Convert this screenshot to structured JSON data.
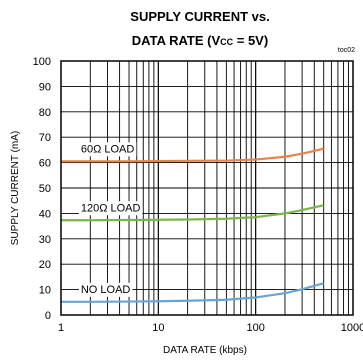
{
  "chart_data": {
    "type": "line",
    "title_line1": "SUPPLY CURRENT vs.",
    "title_line2_pre": "DATA RATE (V",
    "title_line2_sub": "CC",
    "title_line2_post": " = 5V)",
    "tag": "toc02",
    "xlabel": "DATA RATE (kbps)",
    "ylabel": "SUPPLY CURRENT (mA)",
    "xscale": "log",
    "xlim": [
      1,
      1000
    ],
    "ylim": [
      0,
      100
    ],
    "x_ticks": [
      "1",
      "10",
      "100",
      "1000"
    ],
    "y_ticks": [
      "0",
      "10",
      "20",
      "30",
      "40",
      "50",
      "60",
      "70",
      "80",
      "90",
      "100"
    ],
    "grid": true,
    "series": [
      {
        "name": "60Ω LOAD",
        "color": "#e8824a",
        "x": [
          1,
          2,
          5,
          10,
          20,
          50,
          100,
          200,
          300,
          400,
          500
        ],
        "y": [
          60.5,
          60.5,
          60.5,
          60.6,
          60.7,
          60.8,
          61.2,
          62.3,
          63.5,
          64.6,
          65.5
        ]
      },
      {
        "name": "120Ω LOAD",
        "color": "#7ab648",
        "x": [
          1,
          2,
          5,
          10,
          20,
          50,
          100,
          200,
          300,
          400,
          500
        ],
        "y": [
          37.3,
          37.3,
          37.4,
          37.5,
          37.6,
          37.9,
          38.5,
          40.0,
          41.3,
          42.4,
          43.2
        ]
      },
      {
        "name": "NO LOAD",
        "color": "#6aa3d5",
        "x": [
          1,
          2,
          5,
          10,
          20,
          50,
          100,
          200,
          300,
          400,
          500
        ],
        "y": [
          5.2,
          5.2,
          5.3,
          5.4,
          5.6,
          6.0,
          6.9,
          8.6,
          10.1,
          11.5,
          12.5
        ]
      }
    ]
  }
}
